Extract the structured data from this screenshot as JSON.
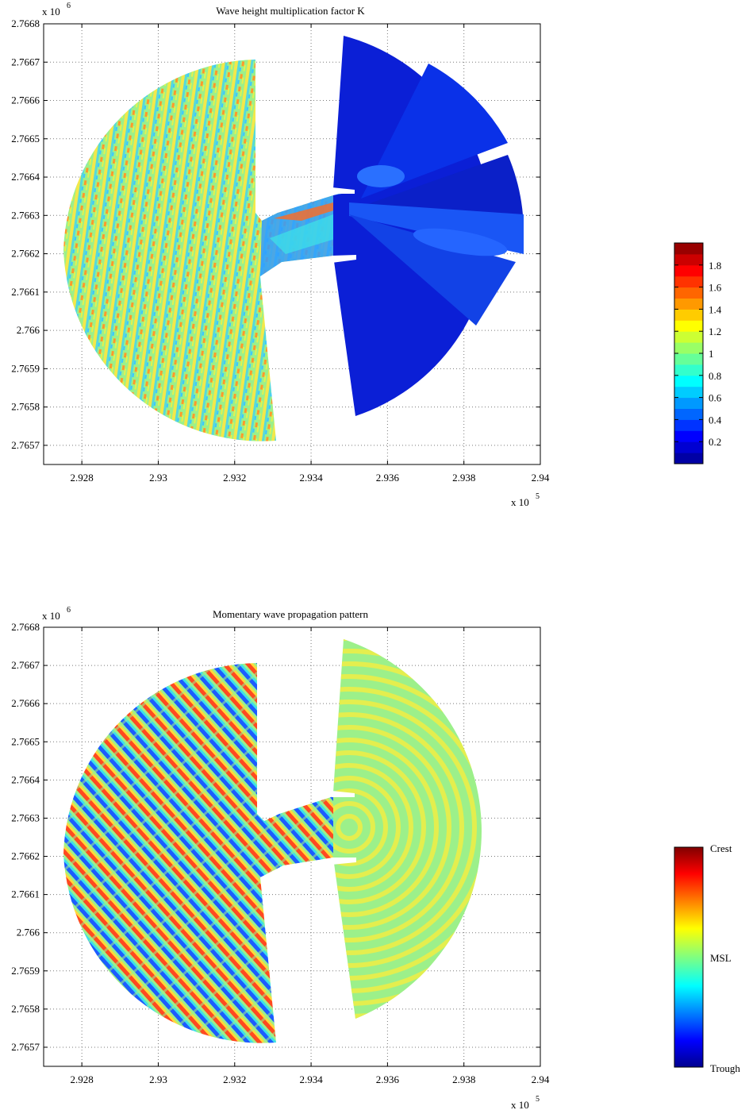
{
  "chart_data": [
    {
      "type": "heatmap",
      "title": "Wave height multiplication factor K",
      "xlabel": "",
      "ylabel": "",
      "x_exponent": "x 10",
      "x_exponent_power": "5",
      "y_exponent": "x 10",
      "y_exponent_power": "6",
      "xlim": [
        2.927,
        2.94
      ],
      "ylim": [
        2.76565,
        2.7668
      ],
      "x_ticks": [
        "2.928",
        "2.93",
        "2.932",
        "2.934",
        "2.936",
        "2.938",
        "2.94"
      ],
      "y_ticks": [
        "2.7668",
        "2.7667",
        "2.7666",
        "2.7665",
        "2.7664",
        "2.7663",
        "2.7662",
        "2.7661",
        "2.766",
        "2.7659",
        "2.7658",
        "2.7657"
      ],
      "grid": true,
      "colorbar": {
        "range": [
          0,
          2
        ],
        "labels": [
          "1.8",
          "1.6",
          "1.4",
          "1.2",
          "1",
          "0.8",
          "0.6",
          "0.4",
          "0.2"
        ]
      }
    },
    {
      "type": "heatmap",
      "title": "Momentary wave propagation pattern",
      "xlabel": "",
      "ylabel": "",
      "x_exponent": "x 10",
      "x_exponent_power": "5",
      "y_exponent": "x 10",
      "y_exponent_power": "6",
      "xlim": [
        2.927,
        2.94
      ],
      "ylim": [
        2.76565,
        2.7668
      ],
      "x_ticks": [
        "2.928",
        "2.93",
        "2.932",
        "2.934",
        "2.936",
        "2.938",
        "2.94"
      ],
      "y_ticks": [
        "2.7668",
        "2.7667",
        "2.7666",
        "2.7665",
        "2.7664",
        "2.7663",
        "2.7662",
        "2.7661",
        "2.766",
        "2.7659",
        "2.7658",
        "2.7657"
      ],
      "grid": true,
      "colorbar": {
        "labels": [
          "Crest",
          "MSL",
          "Trough"
        ]
      }
    }
  ],
  "colors": {
    "jet": [
      "#00008f",
      "#0000ff",
      "#0080ff",
      "#00ffff",
      "#80ff80",
      "#ffff00",
      "#ff8000",
      "#ff0000",
      "#800000"
    ],
    "deep_blue": "#0b1fd6",
    "mid_blue": "#1550f5",
    "msl_green": "#9cf08a"
  }
}
